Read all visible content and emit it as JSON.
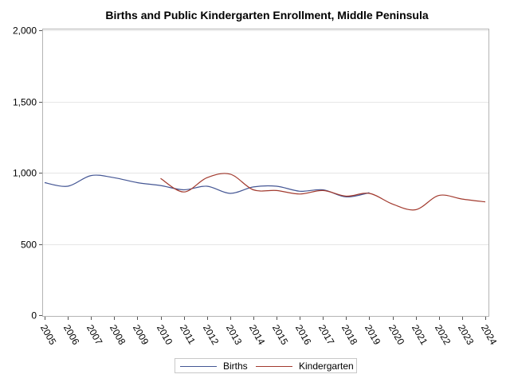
{
  "chart_data": {
    "type": "line",
    "title": "Births and Public Kindergarten Enrollment, Middle Peninsula",
    "xlabel": "",
    "ylabel": "",
    "x": [
      2005,
      2006,
      2007,
      2008,
      2009,
      2010,
      2011,
      2012,
      2013,
      2014,
      2015,
      2016,
      2017,
      2018,
      2019,
      2020,
      2021,
      2022,
      2023,
      2024
    ],
    "y_ticks": [
      "0",
      "500",
      "1,000",
      "1,500",
      "2,000"
    ],
    "y_tick_values": [
      0,
      500,
      1000,
      1500,
      2000
    ],
    "ylim": [
      0,
      2000
    ],
    "grid": true,
    "legend_position": "bottom",
    "series": [
      {
        "name": "Births",
        "color": "#445694",
        "values": [
          930,
          905,
          980,
          965,
          930,
          910,
          880,
          905,
          855,
          900,
          905,
          870,
          880,
          830,
          860,
          null,
          null,
          null,
          null,
          null
        ]
      },
      {
        "name": "Kindergarten",
        "color": "#a23a2e",
        "values": [
          null,
          null,
          null,
          null,
          null,
          960,
          865,
          965,
          990,
          880,
          875,
          850,
          875,
          835,
          855,
          780,
          740,
          840,
          815,
          795
        ]
      }
    ]
  }
}
